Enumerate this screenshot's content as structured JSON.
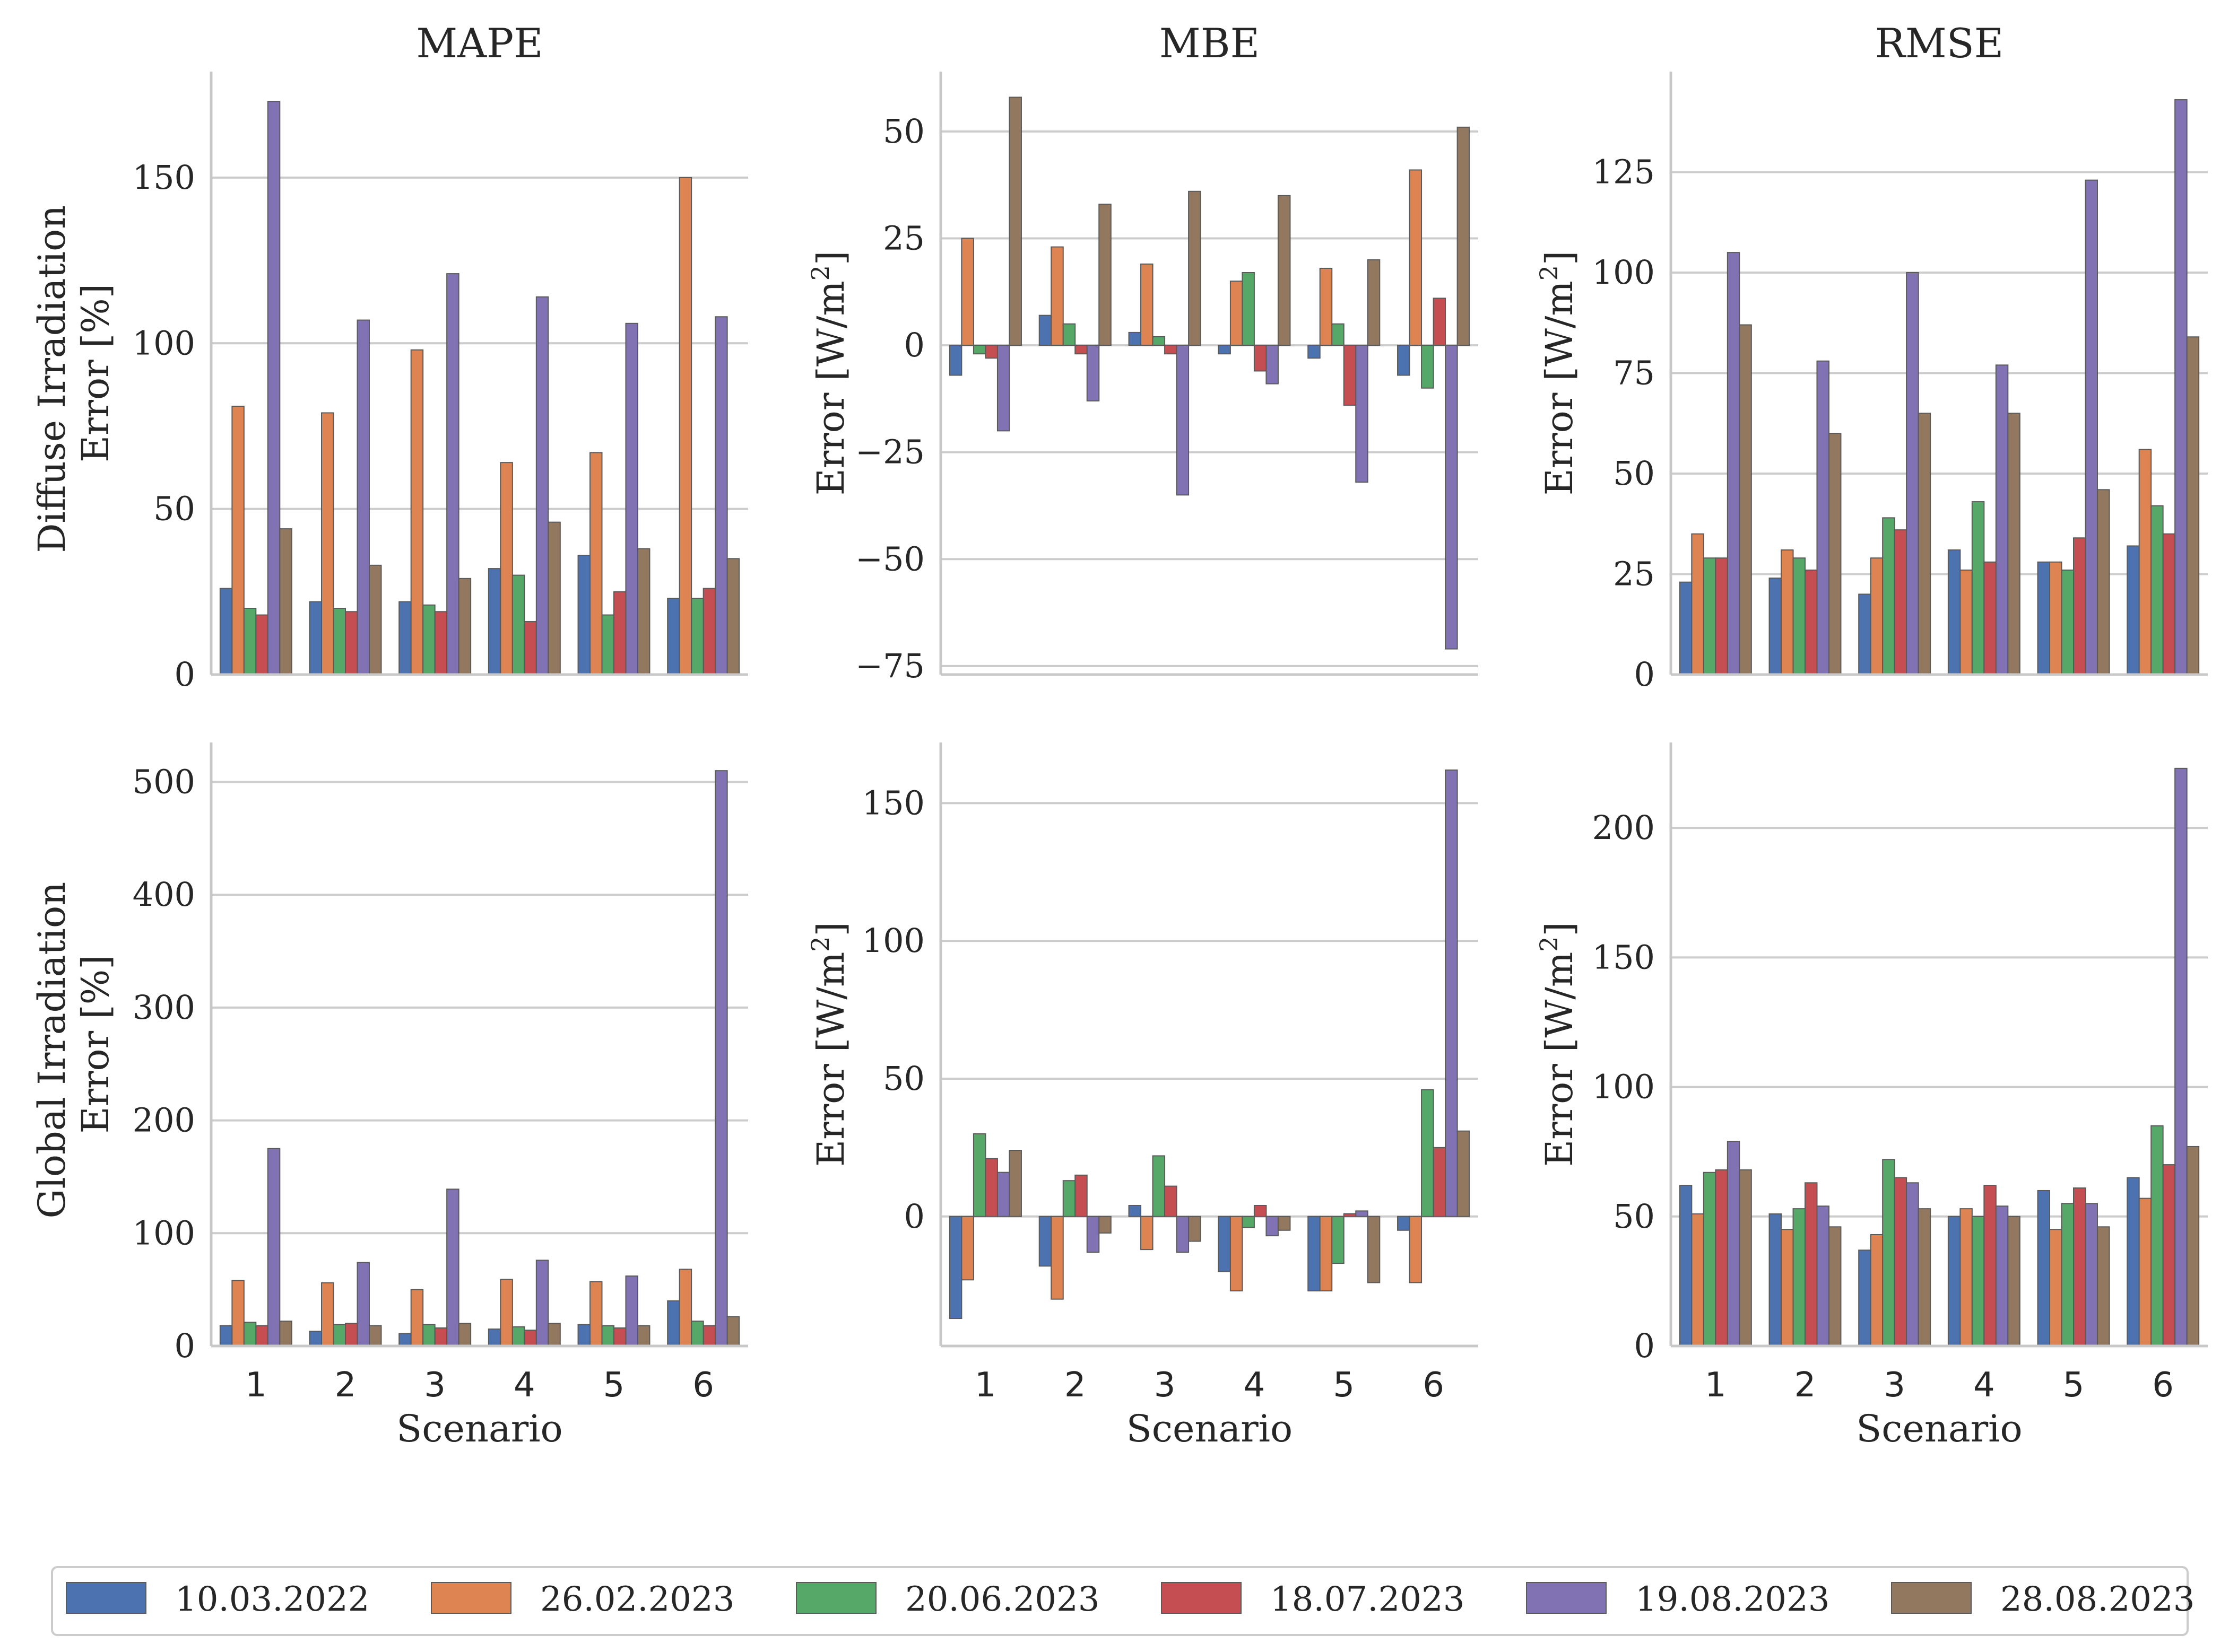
{
  "chart_data": {
    "type": "bar",
    "categories": [
      "1",
      "2",
      "3",
      "4",
      "5",
      "6"
    ],
    "xlabel": "Scenario",
    "legend": {
      "placement": "bottom",
      "entries": [
        {
          "name": "10.03.2022",
          "color": "#4c72b0"
        },
        {
          "name": "26.02.2023",
          "color": "#dd8452"
        },
        {
          "name": "20.06.2023",
          "color": "#55a868"
        },
        {
          "name": "18.07.2023",
          "color": "#c44e52"
        },
        {
          "name": "19.08.2023",
          "color": "#8172b3"
        },
        {
          "name": "28.08.2023",
          "color": "#937860"
        }
      ]
    },
    "panels": [
      {
        "id": "p00",
        "title": "MAPE",
        "ylabel_lines": [
          "Diffuse Irradiation",
          "Error [%]"
        ],
        "ylim": [
          0,
          182
        ],
        "yticks": [
          0,
          50,
          100,
          150
        ],
        "show_xticks": false,
        "series": [
          [
            26,
            22,
            22,
            32,
            36,
            23
          ],
          [
            81,
            79,
            98,
            64,
            67,
            150
          ],
          [
            20,
            20,
            21,
            30,
            18,
            23
          ],
          [
            18,
            19,
            19,
            16,
            25,
            26
          ],
          [
            173,
            107,
            121,
            114,
            106,
            108
          ],
          [
            44,
            33,
            29,
            46,
            38,
            35
          ]
        ]
      },
      {
        "id": "p01",
        "title": "MBE",
        "ylabel_text": "Error [W/m",
        "ylabel_sup": "2",
        "ylabel_end": "]",
        "ylim": [
          -77,
          64
        ],
        "yticks": [
          -75,
          -50,
          -25,
          0,
          25,
          50
        ],
        "show_xticks": false,
        "series": [
          [
            -7,
            7,
            3,
            -2,
            -3,
            -7
          ],
          [
            25,
            23,
            19,
            15,
            18,
            41
          ],
          [
            -2,
            5,
            2,
            17,
            5,
            -10
          ],
          [
            -3,
            -2,
            -2,
            -6,
            -14,
            11
          ],
          [
            -20,
            -13,
            -35,
            -9,
            -32,
            -71
          ],
          [
            58,
            33,
            36,
            35,
            20,
            51
          ]
        ]
      },
      {
        "id": "p02",
        "title": "RMSE",
        "ylabel_text": "Error [W/m",
        "ylabel_sup": "2",
        "ylabel_end": "]",
        "ylim": [
          0,
          150
        ],
        "yticks": [
          0,
          25,
          50,
          75,
          100,
          125
        ],
        "show_xticks": false,
        "series": [
          [
            23,
            24,
            20,
            31,
            28,
            32
          ],
          [
            35,
            31,
            29,
            26,
            28,
            56
          ],
          [
            29,
            29,
            39,
            43,
            26,
            42
          ],
          [
            29,
            26,
            36,
            28,
            34,
            35
          ],
          [
            105,
            78,
            100,
            77,
            123,
            143
          ],
          [
            87,
            60,
            65,
            65,
            46,
            84
          ]
        ]
      },
      {
        "id": "p10",
        "title": "",
        "ylabel_lines": [
          "Global Irradiation",
          "Error [%]"
        ],
        "ylim": [
          0,
          535
        ],
        "yticks": [
          0,
          100,
          200,
          300,
          400,
          500
        ],
        "show_xticks": true,
        "series": [
          [
            18,
            13,
            11,
            15,
            19,
            40
          ],
          [
            58,
            56,
            50,
            59,
            57,
            68
          ],
          [
            21,
            19,
            19,
            17,
            18,
            22
          ],
          [
            18,
            20,
            16,
            14,
            16,
            18
          ],
          [
            175,
            74,
            139,
            76,
            62,
            510
          ],
          [
            22,
            18,
            20,
            20,
            18,
            26
          ]
        ]
      },
      {
        "id": "p11",
        "title": "",
        "ylabel_text": "Error [W/m",
        "ylabel_sup": "2",
        "ylabel_end": "]",
        "ylim": [
          -47,
          172
        ],
        "yticks": [
          0,
          50,
          100,
          150
        ],
        "show_xticks": true,
        "series": [
          [
            -37,
            -18,
            4,
            -20,
            -27,
            -5
          ],
          [
            -23,
            -30,
            -12,
            -27,
            -27,
            -24
          ],
          [
            30,
            13,
            22,
            -4,
            -17,
            46
          ],
          [
            21,
            15,
            11,
            4,
            1,
            25
          ],
          [
            16,
            -13,
            -13,
            -7,
            2,
            162
          ],
          [
            24,
            -6,
            -9,
            -5,
            -24,
            31
          ]
        ]
      },
      {
        "id": "p12",
        "title": "",
        "ylabel_text": "Error [W/m",
        "ylabel_sup": "2",
        "ylabel_end": "]",
        "ylim": [
          0,
          233
        ],
        "yticks": [
          0,
          50,
          100,
          150,
          200
        ],
        "show_xticks": true,
        "series": [
          [
            62,
            51,
            37,
            50,
            60,
            65
          ],
          [
            51,
            45,
            43,
            53,
            45,
            57
          ],
          [
            67,
            53,
            72,
            50,
            55,
            85
          ],
          [
            68,
            63,
            65,
            62,
            61,
            70
          ],
          [
            79,
            54,
            63,
            54,
            55,
            223
          ],
          [
            68,
            46,
            53,
            50,
            46,
            77
          ]
        ]
      }
    ]
  }
}
